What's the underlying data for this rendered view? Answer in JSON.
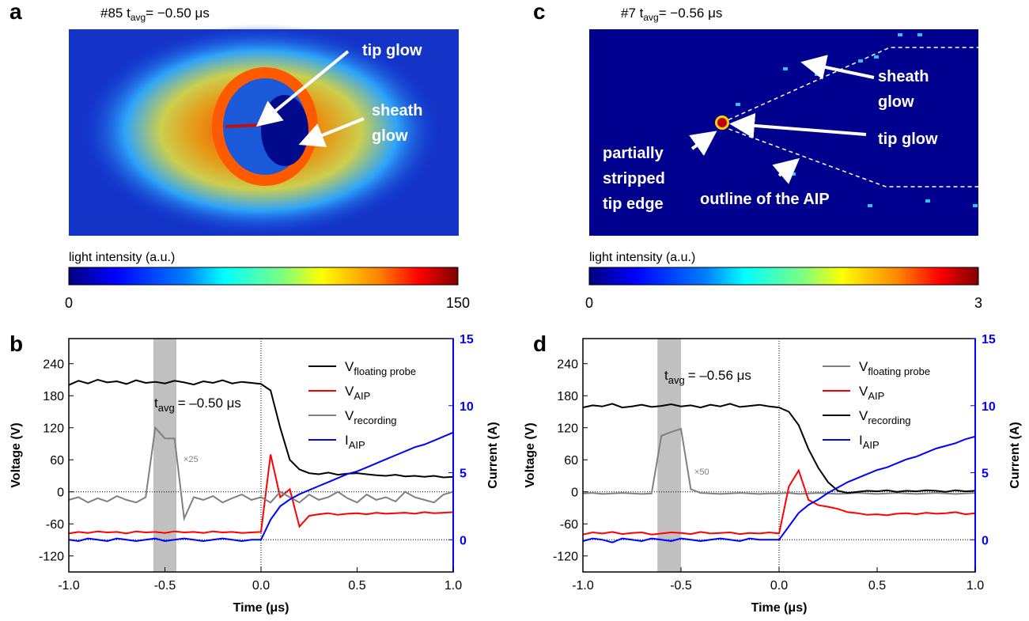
{
  "panel_labels": [
    "a",
    "b",
    "c",
    "d"
  ],
  "images": [
    {
      "caption_prefix": "#85 t",
      "caption_sub": "avg",
      "caption_suffix": "= −0.50 μs",
      "colorbar_label": "light intensity (a.u.)",
      "colorbar_ticks": [
        0,
        150
      ],
      "annotations": [
        [
          "tip glow"
        ],
        [
          "sheath",
          "glow"
        ]
      ]
    },
    {
      "caption_prefix": "#7 t",
      "caption_sub": "avg",
      "caption_suffix": "= −0.56 μs",
      "colorbar_label": "light intensity (a.u.)",
      "colorbar_ticks": [
        0,
        3
      ],
      "annotations": [
        [
          "sheath",
          "glow"
        ],
        [
          "tip glow"
        ],
        [
          "partially",
          "stripped",
          "tip edge"
        ],
        [
          "outline of the AIP"
        ]
      ]
    }
  ],
  "chart_data": [
    {
      "type": "line",
      "xlabel": "Time (μs)",
      "ylabel": "Voltage (V)",
      "y2label": "Current (A)",
      "x": [
        -1,
        -0.95,
        -0.9,
        -0.85,
        -0.8,
        -0.75,
        -0.7,
        -0.65,
        -0.6,
        -0.55,
        -0.5,
        -0.45,
        -0.4,
        -0.35,
        -0.3,
        -0.25,
        -0.2,
        -0.15,
        -0.1,
        -0.05,
        0,
        0.05,
        0.1,
        0.15,
        0.2,
        0.25,
        0.3,
        0.35,
        0.4,
        0.45,
        0.5,
        0.55,
        0.6,
        0.65,
        0.7,
        0.75,
        0.8,
        0.85,
        0.9,
        0.95,
        1
      ],
      "xlim": [
        -1,
        1
      ],
      "xticks": [
        {
          "value": -1,
          "label": "-1.0"
        },
        -0.5,
        {
          "value": 0,
          "label": "0.0"
        },
        0.5,
        {
          "value": 1,
          "label": "1.0"
        }
      ],
      "ylim": [
        -150,
        287
      ],
      "yticks": [
        -120,
        -60,
        0,
        60,
        120,
        180,
        240
      ],
      "y2lim": [
        -2.4,
        15
      ],
      "y2ticks": [
        0,
        5,
        10,
        15
      ],
      "shaded_span": [
        -0.56,
        -0.44
      ],
      "annotation": {
        "t": "t",
        "sub": "avg",
        "text": "= –0.50 μs"
      },
      "scale_note": "×25",
      "series": [
        {
          "name": "V",
          "subscript": "floating probe",
          "color": "#000000",
          "values": [
            200,
            208,
            203,
            210,
            205,
            207,
            202,
            209,
            204,
            206,
            203,
            208,
            205,
            201,
            207,
            204,
            209,
            203,
            206,
            204,
            202,
            190,
            120,
            60,
            42,
            35,
            33,
            36,
            32,
            34,
            35,
            33,
            31,
            30,
            32,
            29,
            30,
            28,
            30,
            27,
            28
          ]
        },
        {
          "name": "V",
          "subscript": "AIP",
          "color": "#ff0000",
          "values": [
            -78,
            -75,
            -77,
            -74,
            -76,
            -75,
            -78,
            -74,
            -76,
            -75,
            -77,
            -74,
            -76,
            -75,
            -77,
            -74,
            -76,
            -75,
            -77,
            -76,
            -75,
            70,
            -10,
            5,
            -65,
            -45,
            -42,
            -40,
            -43,
            -41,
            -40,
            -42,
            -39,
            -41,
            -40,
            -39,
            -41,
            -38,
            -40,
            -39,
            -38
          ]
        },
        {
          "name": "V",
          "subscript": "recording",
          "color": "#808080",
          "values": [
            -15,
            -10,
            -20,
            -12,
            -18,
            -8,
            -15,
            -20,
            -10,
            120,
            100,
            100,
            -50,
            -10,
            -15,
            -8,
            -20,
            -12,
            -5,
            -15,
            -10,
            -20,
            0,
            -10,
            -20,
            -5,
            -15,
            -10,
            0,
            -12,
            -20,
            -5,
            -15,
            -10,
            -18,
            0,
            -10,
            -15,
            -20,
            -5,
            0
          ]
        },
        {
          "name": "I",
          "subscript": "AIP",
          "color": "#0000ff",
          "axis": "y2",
          "values": [
            0,
            -0.1,
            0.1,
            0,
            -0.1,
            0.1,
            0,
            -0.1,
            0,
            0.1,
            -0.1,
            0,
            0.1,
            0,
            -0.1,
            0,
            0.1,
            0,
            -0.1,
            0,
            0,
            1.5,
            2.5,
            3,
            3.4,
            3.7,
            4,
            4.3,
            4.6,
            4.9,
            5.1,
            5.4,
            5.7,
            6,
            6.3,
            6.6,
            6.9,
            7.1,
            7.4,
            7.7,
            8
          ]
        }
      ]
    },
    {
      "type": "line",
      "xlabel": "Time (μs)",
      "ylabel": "Voltage (V)",
      "y2label": "Current (A)",
      "x": [
        -1,
        -0.95,
        -0.9,
        -0.85,
        -0.8,
        -0.75,
        -0.7,
        -0.65,
        -0.6,
        -0.55,
        -0.5,
        -0.45,
        -0.4,
        -0.35,
        -0.3,
        -0.25,
        -0.2,
        -0.15,
        -0.1,
        -0.05,
        0,
        0.05,
        0.1,
        0.15,
        0.2,
        0.25,
        0.3,
        0.35,
        0.4,
        0.45,
        0.5,
        0.55,
        0.6,
        0.65,
        0.7,
        0.75,
        0.8,
        0.85,
        0.9,
        0.95,
        1
      ],
      "xlim": [
        -1,
        1
      ],
      "xticks": [
        {
          "value": -1,
          "label": "-1.0"
        },
        -0.5,
        {
          "value": 0,
          "label": "0.0"
        },
        0.5,
        {
          "value": 1,
          "label": "1.0"
        }
      ],
      "ylim": [
        -150,
        287
      ],
      "yticks": [
        -120,
        -60,
        0,
        60,
        120,
        180,
        240
      ],
      "y2lim": [
        -2.4,
        15
      ],
      "y2ticks": [
        0,
        5,
        10,
        15
      ],
      "shaded_span": [
        -0.62,
        -0.5
      ],
      "annotation": {
        "t": "t",
        "sub": "avg",
        "text": "= –0.56 μs"
      },
      "scale_note": "×50",
      "series": [
        {
          "name": "V",
          "subscript": "floating probe",
          "color": "#808080",
          "values": [
            -3,
            -2,
            -4,
            -3,
            -2,
            -3,
            -4,
            -3,
            105,
            112,
            118,
            5,
            -2,
            -3,
            -4,
            -3,
            -2,
            -3,
            -4,
            -3,
            -3,
            -2,
            -4,
            -3,
            -2,
            -3,
            -4,
            -3,
            -2,
            -3,
            -4,
            -3,
            -2,
            -3,
            -4,
            -3,
            -2,
            -3,
            -4,
            -3,
            -2
          ]
        },
        {
          "name": "V",
          "subscript": "AIP",
          "color": "#ff0000",
          "values": [
            -80,
            -76,
            -78,
            -75,
            -79,
            -77,
            -76,
            -80,
            -78,
            -76,
            -77,
            -79,
            -75,
            -78,
            -77,
            -76,
            -79,
            -77,
            -78,
            -76,
            -78,
            10,
            40,
            -15,
            -25,
            -28,
            -32,
            -38,
            -40,
            -43,
            -42,
            -44,
            -41,
            -40,
            -42,
            -39,
            -41,
            -40,
            -38,
            -42,
            -40
          ]
        },
        {
          "name": "V",
          "subscript": "recording",
          "color": "#000000",
          "values": [
            158,
            162,
            160,
            165,
            158,
            160,
            163,
            159,
            161,
            164,
            160,
            162,
            158,
            163,
            160,
            165,
            159,
            161,
            163,
            160,
            158,
            150,
            125,
            80,
            45,
            18,
            2,
            -2,
            0,
            2,
            1,
            3,
            0,
            2,
            1,
            3,
            2,
            0,
            3,
            1,
            2
          ]
        },
        {
          "name": "I",
          "subscript": "AIP",
          "color": "#0000ff",
          "axis": "y2",
          "values": [
            -0.1,
            0.1,
            0,
            -0.2,
            0.1,
            0,
            -0.1,
            0.1,
            0,
            -0.1,
            0.1,
            0,
            -0.1,
            0,
            0.1,
            0,
            -0.1,
            0.1,
            0,
            0,
            0,
            1,
            2,
            2.6,
            3,
            3.5,
            3.9,
            4.3,
            4.6,
            4.9,
            5.2,
            5.4,
            5.7,
            6,
            6.2,
            6.5,
            6.8,
            7,
            7.2,
            7.5,
            7.7
          ]
        }
      ]
    }
  ]
}
